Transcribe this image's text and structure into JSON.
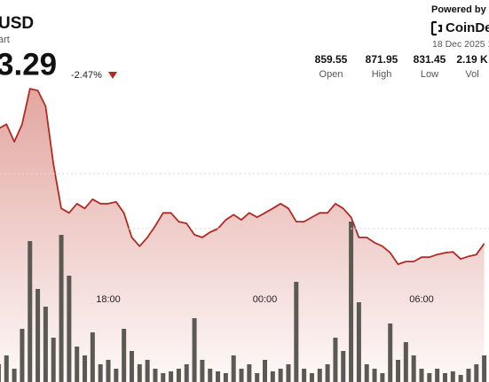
{
  "header": {
    "symbol": "USD",
    "subtitle": "art",
    "price": "3.29",
    "change": "-2.47%"
  },
  "stats": [
    {
      "value": "859.55",
      "label": "Open"
    },
    {
      "value": "871.95",
      "label": "High"
    },
    {
      "value": "831.45",
      "label": "Low"
    },
    {
      "value": "2.19 K",
      "label": "Vol"
    }
  ],
  "branding": {
    "powered": "Powered by",
    "logo": "CoinDe",
    "date": "18 Dec 2025 1"
  },
  "chart_data": [
    {
      "type": "area",
      "color": "#b22a22",
      "ylim": [
        800,
        880
      ],
      "values": [
        862.8,
        863.8,
        859.8,
        863.8,
        871.9,
        871.5,
        867.9,
        854.7,
        844.6,
        843.6,
        845.7,
        844.6,
        846.7,
        845.7,
        845.7,
        846.1,
        843.6,
        838.0,
        836.0,
        838.0,
        840.6,
        843.6,
        843.6,
        841.6,
        841.2,
        838.6,
        838.0,
        839.2,
        840.0,
        842.0,
        843.2,
        842.0,
        843.6,
        842.6,
        843.6,
        844.6,
        845.7,
        844.6,
        841.6,
        841.6,
        842.6,
        843.6,
        843.6,
        845.7,
        844.6,
        842.6,
        838.0,
        838.0,
        836.8,
        836.0,
        834.5,
        831.9,
        832.5,
        832.5,
        833.5,
        833.5,
        834.1,
        834.5,
        834.7,
        833.1,
        833.7,
        834.1,
        836.6
      ],
      "xticks": [
        {
          "value": 14,
          "label": "18:00"
        },
        {
          "value": 34,
          "label": "00:00"
        },
        {
          "value": 54,
          "label": "06:00"
        }
      ]
    },
    {
      "type": "bar",
      "color": "#5a5a52",
      "ylim": [
        0,
        180
      ],
      "values": [
        20,
        30,
        15,
        60,
        159,
        105,
        85,
        50,
        166,
        120,
        40,
        30,
        56,
        20,
        25,
        15,
        60,
        35,
        20,
        25,
        15,
        10,
        12,
        15,
        20,
        72,
        25,
        15,
        12,
        10,
        30,
        15,
        20,
        10,
        25,
        12,
        15,
        20,
        113,
        15,
        10,
        15,
        20,
        50,
        35,
        181,
        90,
        20,
        15,
        10,
        66,
        25,
        45,
        30,
        15,
        10,
        15,
        10,
        12,
        8,
        15,
        20,
        30
      ]
    }
  ]
}
